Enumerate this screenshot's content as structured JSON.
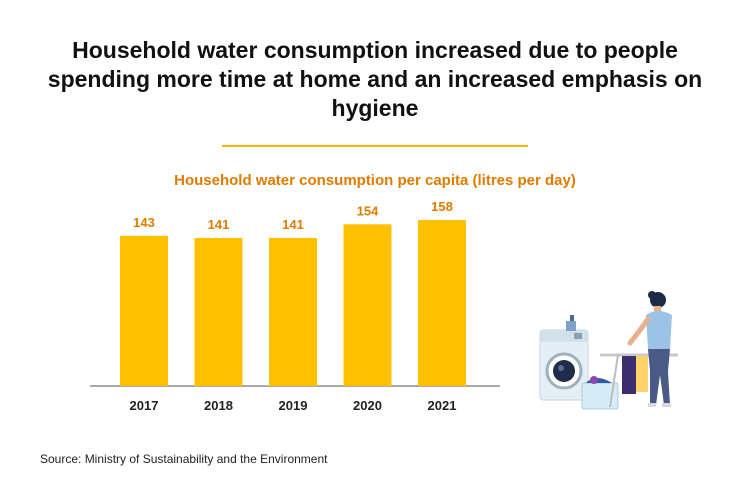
{
  "headline": "Household water consumption increased due to people spending more time at home and an increased emphasis on hygiene",
  "source": "Source: Ministry of Sustainability and the Environment",
  "colors": {
    "bar": "#ffc000",
    "label": "#e07b00",
    "divider": "#f5b800",
    "axis": "#555555"
  },
  "illustration": {
    "icon": "person-doing-laundry-icon"
  },
  "chart_data": {
    "type": "bar",
    "title": "Household water consumption per capita (litres per day)",
    "categories": [
      "2017",
      "2018",
      "2019",
      "2020",
      "2021"
    ],
    "values": [
      143,
      141,
      141,
      154,
      158
    ],
    "xlabel": "",
    "ylabel": "",
    "ylim": [
      0,
      160
    ],
    "grid": false,
    "data_labels": true
  }
}
